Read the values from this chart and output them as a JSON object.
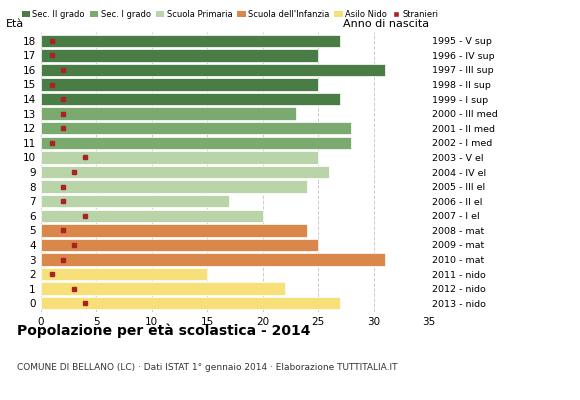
{
  "ages": [
    18,
    17,
    16,
    15,
    14,
    13,
    12,
    11,
    10,
    9,
    8,
    7,
    6,
    5,
    4,
    3,
    2,
    1,
    0
  ],
  "values": [
    27,
    25,
    31,
    25,
    27,
    23,
    28,
    28,
    25,
    26,
    24,
    17,
    20,
    24,
    25,
    31,
    15,
    22,
    27
  ],
  "stranieri": [
    1,
    1,
    2,
    1,
    2,
    2,
    2,
    1,
    4,
    3,
    2,
    2,
    4,
    2,
    3,
    2,
    1,
    3,
    4
  ],
  "bar_colors": [
    "#4a7c45",
    "#4a7c45",
    "#4a7c45",
    "#4a7c45",
    "#4a7c45",
    "#7aaa6e",
    "#7aaa6e",
    "#7aaa6e",
    "#b8d4a8",
    "#b8d4a8",
    "#b8d4a8",
    "#b8d4a8",
    "#b8d4a8",
    "#d9874a",
    "#d9874a",
    "#d9874a",
    "#f7e07a",
    "#f7e07a",
    "#f7e07a"
  ],
  "right_labels": [
    "1995 - V sup",
    "1996 - IV sup",
    "1997 - III sup",
    "1998 - II sup",
    "1999 - I sup",
    "2000 - III med",
    "2001 - II med",
    "2002 - I med",
    "2003 - V el",
    "2004 - IV el",
    "2005 - III el",
    "2006 - II el",
    "2007 - I el",
    "2008 - mat",
    "2009 - mat",
    "2010 - mat",
    "2011 - nido",
    "2012 - nido",
    "2013 - nido"
  ],
  "legend_labels": [
    "Sec. II grado",
    "Sec. I grado",
    "Scuola Primaria",
    "Scuola dell'Infanzia",
    "Asilo Nido",
    "Stranieri"
  ],
  "legend_colors": [
    "#4a7c45",
    "#7aaa6e",
    "#b8d4a8",
    "#d9874a",
    "#f7e07a",
    "#aa2222"
  ],
  "title": "Popolazione per età scolastica - 2014",
  "subtitle": "COMUNE DI BELLANO (LC) · Dati ISTAT 1° gennaio 2014 · Elaborazione TUTTITALIA.IT",
  "ylabel_left": "Età",
  "ylabel_right": "Anno di nascita",
  "xlim": [
    0,
    35
  ],
  "xticks": [
    0,
    5,
    10,
    15,
    20,
    25,
    30,
    35
  ],
  "stranieri_color": "#aa2222",
  "bar_height": 0.85,
  "background_color": "#ffffff",
  "grid_color": "#cccccc"
}
